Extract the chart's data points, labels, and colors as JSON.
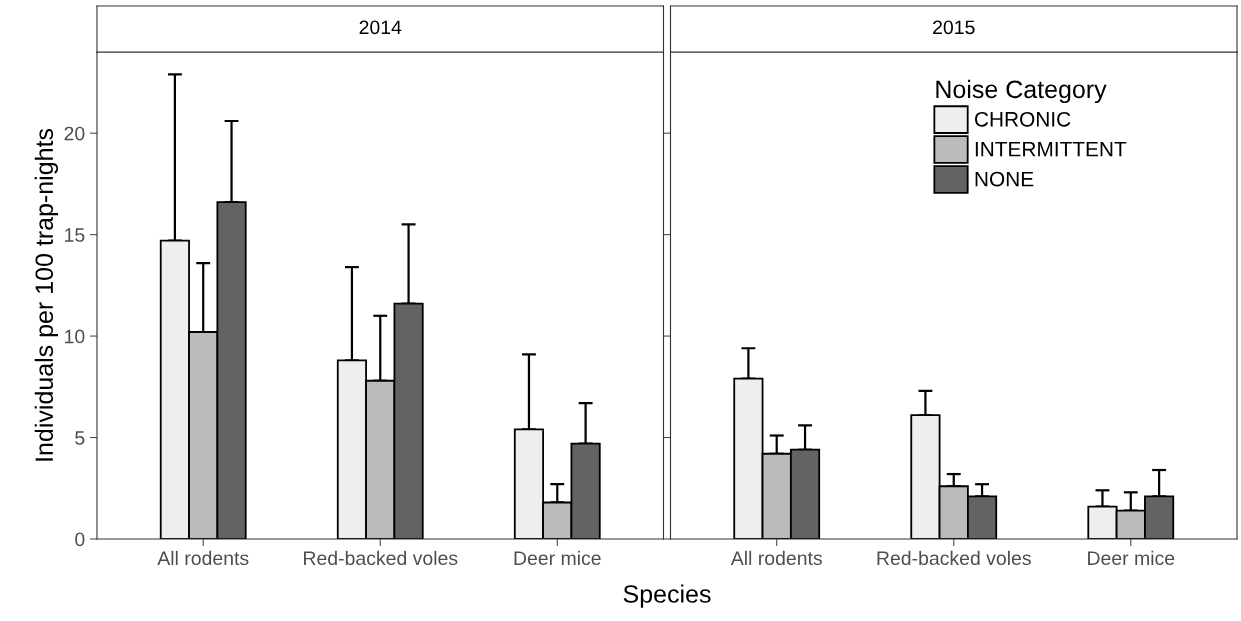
{
  "chart_data": [
    {
      "type": "bar",
      "title": "2014",
      "xlabel": "Species",
      "ylabel": "Individuals per 100 trap-nights",
      "categories": [
        "All rodents",
        "Red-backed voles",
        "Deer mice"
      ],
      "ylim": [
        0,
        24
      ],
      "yticks": [
        0,
        5,
        10,
        15,
        20
      ],
      "grid": false,
      "series": [
        {
          "color": "#eeeeee",
          "values": [
            14.7,
            8.8,
            5.4
          ],
          "errors": [
            [
              14.7,
              22.9
            ],
            [
              8.8,
              13.4
            ],
            [
              5.4,
              9.1
            ]
          ]
        },
        {
          "color": "#bbbbbb",
          "values": [
            10.2,
            7.8,
            1.8
          ],
          "errors": [
            [
              10.2,
              13.6
            ],
            [
              7.8,
              11.0
            ],
            [
              1.8,
              2.7
            ]
          ]
        },
        {
          "color": "#636363",
          "values": [
            16.6,
            11.6,
            4.7
          ],
          "errors": [
            [
              16.6,
              20.6
            ],
            [
              11.6,
              15.5
            ],
            [
              4.7,
              6.7
            ]
          ]
        }
      ]
    },
    {
      "type": "bar",
      "title": "2015",
      "categories": [
        "All rodents",
        "Red-backed voles",
        "Deer mice"
      ],
      "ylim": [
        0,
        24
      ],
      "yticks": [
        0,
        5,
        10,
        15,
        20
      ],
      "grid": false,
      "tick_labels": "x",
      "legend": "top right",
      "legend_title": "Noise Category",
      "series": [
        {
          "name": "CHRONIC",
          "color": "#eeeeee",
          "values": [
            7.9,
            6.1,
            1.6
          ],
          "errors": [
            [
              7.9,
              9.4
            ],
            [
              6.1,
              7.3
            ],
            [
              1.6,
              2.4
            ]
          ]
        },
        {
          "name": "INTERMITTENT",
          "color": "#bbbbbb",
          "values": [
            4.2,
            2.6,
            1.4
          ],
          "errors": [
            [
              4.2,
              5.1
            ],
            [
              2.6,
              3.2
            ],
            [
              1.4,
              2.3
            ]
          ]
        },
        {
          "name": "NONE",
          "color": "#636363",
          "values": [
            4.4,
            2.1,
            2.1
          ],
          "errors": [
            [
              4.4,
              5.6
            ],
            [
              2.1,
              2.7
            ],
            [
              2.1,
              3.4
            ]
          ]
        }
      ]
    }
  ]
}
